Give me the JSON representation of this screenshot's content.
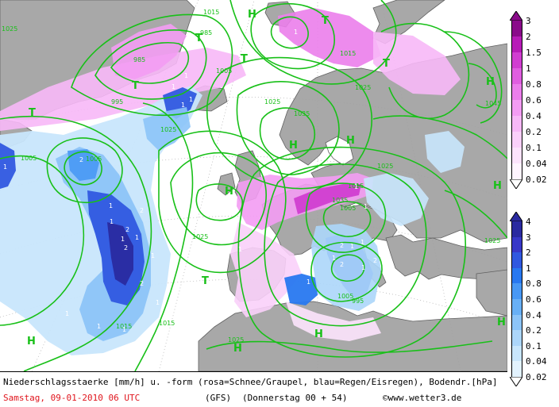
{
  "footer": {
    "description": "Niederschlagsstaerke [mm/h] u. -form (rosa=Schnee/Graupel, blau=Regen/Eisregen), Bodendr.[hPa]",
    "date": "Samstag, 09-01-2010  06 UTC",
    "model": "(GFS)",
    "run": "(Donnerstag 00 + 54)",
    "copyright": "©www.wetter3.de"
  },
  "scale_snow": {
    "colors": [
      "#8a0b8a",
      "#b71cb7",
      "#d13ed1",
      "#e05ee0",
      "#eb7eeb",
      "#f39cf3",
      "#f7b8f7",
      "#fad0fa",
      "#fce3fc",
      "#fff4ff"
    ],
    "labels": [
      "3",
      "2",
      "1.5",
      "1",
      "0.8",
      "0.6",
      "0.4",
      "0.2",
      "0.1",
      "0.04",
      "0.02"
    ]
  },
  "scale_rain": {
    "colors": [
      "#2a2aa0",
      "#3838c8",
      "#3058e0",
      "#2878f0",
      "#4898f4",
      "#68b0f6",
      "#8cc4f8",
      "#acd6fa",
      "#c8e6fc",
      "#e2f2fe"
    ],
    "labels": [
      "4",
      "3",
      "2",
      "1",
      "0.8",
      "0.6",
      "0.4",
      "0.2",
      "0.1",
      "0.04",
      "0.02"
    ]
  },
  "colors": {
    "isobar": "#18c018",
    "land": "#a8a8a8",
    "sea": "#ffffff",
    "coast": "#606060",
    "grid": "#a0a0a0"
  },
  "pressure_centers": [
    {
      "name": "T",
      "type": "low"
    },
    {
      "name": "T",
      "type": "low"
    },
    {
      "name": "T",
      "type": "low"
    },
    {
      "name": "T",
      "type": "low"
    },
    {
      "name": "T",
      "type": "low"
    },
    {
      "name": "T",
      "type": "low"
    },
    {
      "name": "T",
      "type": "low"
    },
    {
      "name": "H",
      "type": "high"
    },
    {
      "name": "H",
      "type": "high"
    },
    {
      "name": "H",
      "type": "high"
    },
    {
      "name": "H",
      "type": "high"
    },
    {
      "name": "H",
      "type": "high"
    },
    {
      "name": "H",
      "type": "high"
    },
    {
      "name": "H",
      "type": "high"
    },
    {
      "name": "H",
      "type": "high"
    },
    {
      "name": "H",
      "type": "high"
    },
    {
      "name": "H",
      "type": "high"
    }
  ],
  "isobar_labels": [
    "1015",
    "985",
    "995",
    "1005",
    "1015",
    "1025",
    "1025",
    "1035",
    "1045",
    "1025",
    "1005",
    "1025",
    "1015",
    "1025",
    "1025",
    "1015",
    "1025",
    "1005",
    "1035",
    "1005",
    "995",
    "985",
    "1025",
    "1015",
    "1005"
  ],
  "precip_labels": [
    "1",
    "1",
    "2",
    "1",
    "1",
    "2",
    "2",
    "1",
    "2",
    "1",
    "1",
    "2",
    "1",
    "1",
    "1",
    "1",
    "1",
    "2",
    "1",
    "1",
    "1",
    "1",
    "2",
    "2",
    "1",
    "1",
    "1",
    "1",
    "1",
    "1",
    "1"
  ]
}
